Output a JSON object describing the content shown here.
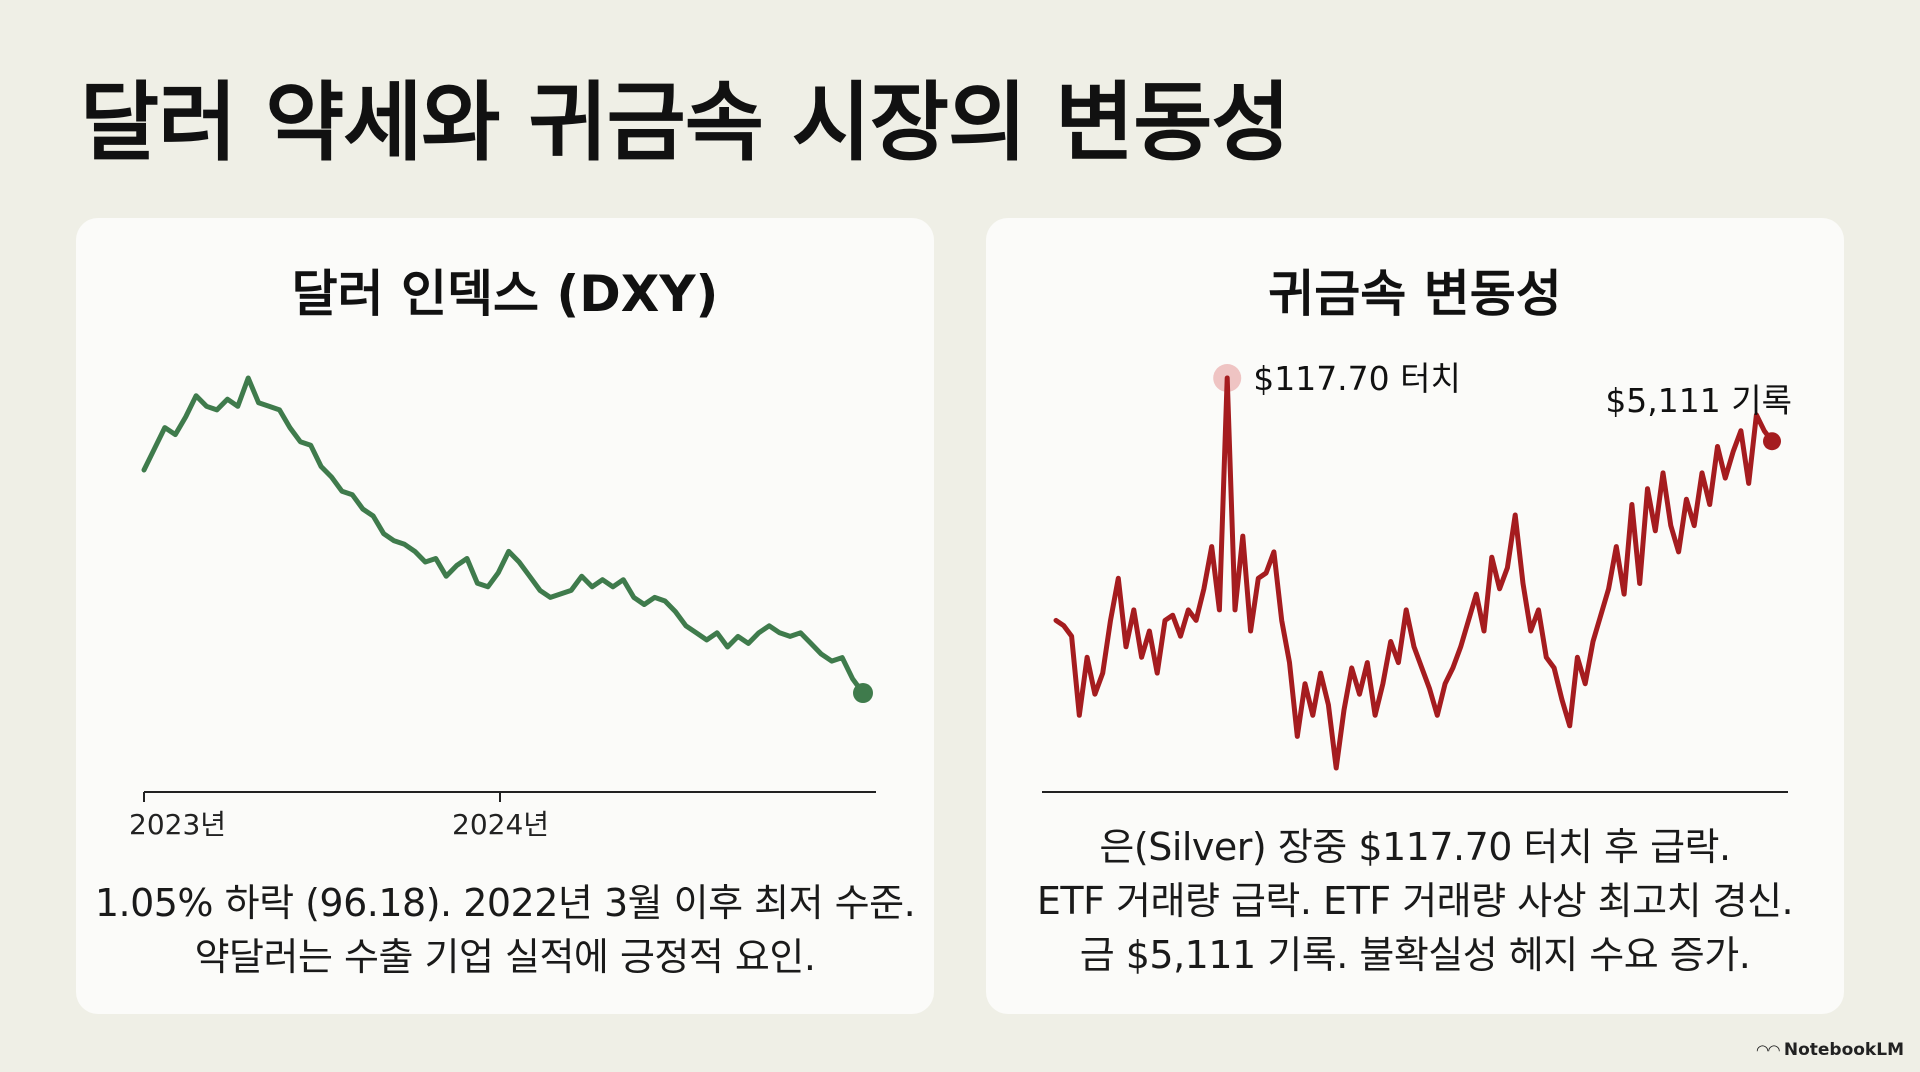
{
  "page": {
    "title": "달러 약세와 귀금속 시장의 변동성",
    "watermark": "NotebookLM"
  },
  "colors": {
    "dxy_line": "#3f7b4c",
    "metal_line": "#a51c1f",
    "axis": "#222222",
    "peak_marker": "#e8a6a6"
  },
  "chart_data": [
    {
      "type": "line",
      "title": "달러 인덱스 (DXY)",
      "x_ticks": [
        "2023년",
        "2024년"
      ],
      "series": [
        {
          "values": [
            101.2,
            101.8,
            102.4,
            102.2,
            102.7,
            103.3,
            103.0,
            102.9,
            103.2,
            103.0,
            103.8,
            103.1,
            103.0,
            102.9,
            102.4,
            102.0,
            101.9,
            101.3,
            101.0,
            100.6,
            100.5,
            100.1,
            99.9,
            99.4,
            99.2,
            99.1,
            98.9,
            98.6,
            98.7,
            98.2,
            98.5,
            98.7,
            98.0,
            97.9,
            98.3,
            98.9,
            98.6,
            98.2,
            97.8,
            97.6,
            97.7,
            97.8,
            98.2,
            97.9,
            98.1,
            97.9,
            98.1,
            97.6,
            97.4,
            97.6,
            97.5,
            97.2,
            96.8,
            96.6,
            96.4,
            96.6,
            96.2,
            96.5,
            96.3,
            96.6,
            96.8,
            96.6,
            96.5,
            96.6,
            96.3,
            96.0,
            95.8,
            95.9,
            95.3,
            94.9
          ]
        }
      ],
      "end_marker": true
    },
    {
      "type": "line",
      "title": "귀금속 변동성",
      "series": [
        {
          "values": [
            38,
            37,
            35,
            20,
            31,
            24,
            28,
            38,
            46,
            33,
            40,
            31,
            36,
            28,
            38,
            39,
            35,
            40,
            38,
            44,
            52,
            40,
            84,
            40,
            54,
            36,
            46,
            47,
            51,
            38,
            30,
            16,
            26,
            20,
            28,
            22,
            10,
            21,
            29,
            24,
            30,
            20,
            26,
            34,
            30,
            40,
            33,
            29,
            25,
            20,
            26,
            29,
            33,
            38,
            43,
            36,
            50,
            44,
            48,
            58,
            45,
            36,
            40,
            31,
            29,
            23,
            18,
            31,
            26,
            34,
            39,
            44,
            52,
            43,
            60,
            45,
            63,
            55,
            66,
            56,
            51,
            61,
            56,
            66,
            60,
            71,
            65,
            70,
            74,
            64,
            77,
            74,
            72
          ]
        }
      ],
      "annotations": [
        {
          "label": "$117.70 터치",
          "series_index": 22
        },
        {
          "label": "$5,111 기록",
          "series_index": 92
        }
      ]
    }
  ],
  "dxy_card": {
    "caption_lines": [
      "1.05% 하락 (96.18). 2022년 3월 이후 최저 수준.",
      "약달러는 수출 기업 실적에 긍정적 요인."
    ]
  },
  "metals_card": {
    "caption_lines": [
      "은(Silver) 장중 $117.70 터치 후 급락.",
      "ETF 거래량 급락. ETF 거래량 사상 최고치 경신.",
      "금 $5,111 기록. 불확실성 헤지 수요 증가."
    ]
  }
}
